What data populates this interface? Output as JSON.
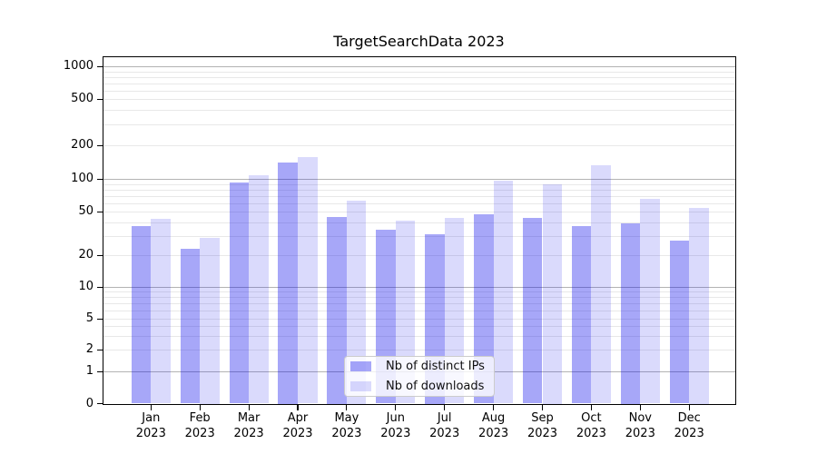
{
  "title": "TargetSearchData 2023",
  "legend": {
    "position": "lower center",
    "items": [
      {
        "label": "Nb of distinct IPs"
      },
      {
        "label": "Nb of downloads"
      }
    ]
  },
  "chart_data": {
    "type": "bar",
    "title": "TargetSearchData 2023",
    "categories": [
      "Jan",
      "Feb",
      "Mar",
      "Apr",
      "May",
      "Jun",
      "Jul",
      "Aug",
      "Sep",
      "Oct",
      "Nov",
      "Dec"
    ],
    "category_year_suffix": "2023",
    "series": [
      {
        "name": "Nb of distinct IPs",
        "color": "rgba(0,0,235,0.345)",
        "color_on_white": "#a8a8f8",
        "values": [
          37,
          23,
          93,
          140,
          45,
          34,
          31,
          47,
          44,
          37,
          39,
          27
        ]
      },
      {
        "name": "Nb of downloads",
        "color": "rgba(0,0,235,0.145)",
        "color_on_white": "#dbdbf9",
        "values": [
          43,
          29,
          107,
          158,
          63,
          41,
          44,
          96,
          90,
          132,
          66,
          54
        ]
      }
    ],
    "yscale": "symlog (linear 0 to 1, logarithmic above 1)",
    "ylim": [
      0,
      1200
    ],
    "y_ticks": [
      0,
      1,
      2,
      5,
      10,
      20,
      50,
      100,
      200,
      500,
      1000
    ],
    "y_major_gridlines": [
      1,
      10,
      100,
      1000
    ],
    "y_minor_gridlines": [
      2,
      3,
      4,
      5,
      6,
      7,
      8,
      9,
      20,
      30,
      40,
      50,
      60,
      70,
      80,
      90,
      200,
      300,
      400,
      500,
      600,
      700,
      800,
      900
    ],
    "grid": true,
    "legend_position": "lower center",
    "colors": {
      "major_grid": "#b3b3b3",
      "minor_grid": "#e8e8e8",
      "axis": "#000000"
    }
  }
}
